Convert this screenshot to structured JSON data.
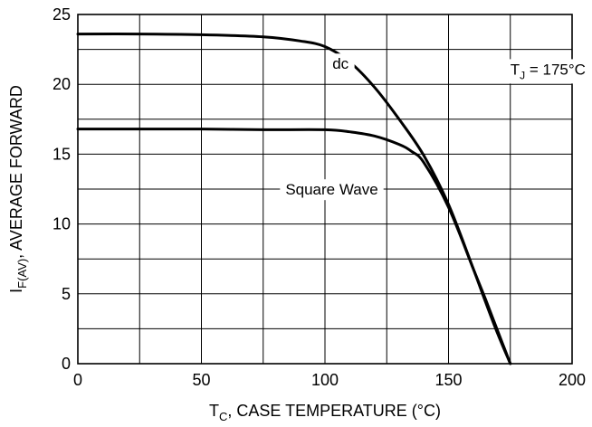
{
  "chart_data": {
    "type": "line",
    "title": "",
    "xlabel": {
      "main": "T",
      "sub": "C",
      "rest": ", CASE TEMPERATURE (°C)"
    },
    "ylabel": {
      "main": "I",
      "sub": "F(AV)",
      "rest": ", AVERAGE FORWARD"
    },
    "xlim": [
      0,
      200
    ],
    "ylim": [
      0,
      25
    ],
    "xticks": [
      0,
      50,
      100,
      150,
      200
    ],
    "yticks": [
      0,
      5,
      10,
      15,
      20,
      25
    ],
    "grid": true,
    "series": [
      {
        "name": "dc",
        "x": [
          0,
          25,
          50,
          75,
          90,
          100,
          110,
          120,
          130,
          140,
          150,
          160,
          165,
          170,
          175
        ],
        "y": [
          23.6,
          23.6,
          23.55,
          23.4,
          23.1,
          22.7,
          21.6,
          19.8,
          17.5,
          14.9,
          11.4,
          6.8,
          4.4,
          2.1,
          0
        ]
      },
      {
        "name": "Square Wave",
        "x": [
          0,
          25,
          50,
          75,
          100,
          110,
          120,
          130,
          135,
          140,
          150,
          160,
          165,
          170,
          175
        ],
        "y": [
          16.8,
          16.8,
          16.8,
          16.75,
          16.75,
          16.6,
          16.3,
          15.7,
          15.2,
          14.4,
          11.2,
          6.8,
          4.6,
          2.3,
          0
        ]
      }
    ],
    "annotations": [
      {
        "text": "dc",
        "x": 103,
        "y": 21.1
      },
      {
        "text_main": "T",
        "text_sub": "J",
        "text_rest": " = 175°C",
        "x": 175,
        "y": 20.7
      },
      {
        "text": "Square Wave",
        "x": 84,
        "y": 12.1
      }
    ]
  }
}
